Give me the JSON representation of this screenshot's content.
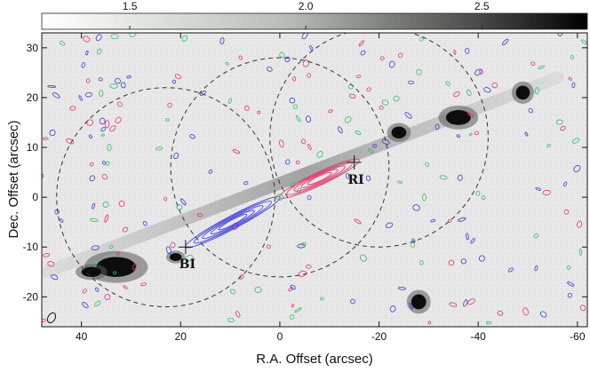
{
  "chart_data": {
    "type": "image",
    "xlabel": "R.A. Offset (arcsec)",
    "ylabel": "Dec. Offset (arcsec)",
    "xlim": [
      48,
      -62
    ],
    "ylim": [
      -26,
      33
    ],
    "x_ticks": [
      40,
      20,
      0,
      -20,
      -40,
      -60
    ],
    "y_ticks": [
      30,
      20,
      10,
      0,
      -10,
      -20
    ],
    "x_tick_labels": [
      "40",
      "20",
      "0",
      "-20",
      "-40",
      "-60"
    ],
    "y_tick_labels": [
      "30",
      "20",
      "10",
      "0",
      "-10",
      "-20"
    ],
    "colorbar": {
      "cmap": "gray-inverted",
      "range": [
        1.25,
        2.8
      ],
      "ticks": [
        1.5,
        2.0,
        2.5
      ],
      "tick_labels": [
        "1.5",
        "2.0",
        "2.5"
      ],
      "placement": "top"
    },
    "jet_axis": {
      "from": [
        47,
        -15
      ],
      "to": [
        -56,
        24
      ]
    },
    "fields_of_view": [
      {
        "center": [
          23,
          0
        ],
        "radius": 22
      },
      {
        "center": [
          0,
          6
        ],
        "radius": 22
      },
      {
        "center": [
          -20,
          12
        ],
        "radius": 22
      }
    ],
    "knots": [
      {
        "label": "BI",
        "x": 19,
        "y": -10
      },
      {
        "label": "RI",
        "x": -15,
        "y": 7
      }
    ],
    "blue_lobe": {
      "from": [
        0,
        0
      ],
      "to": [
        19,
        -10
      ]
    },
    "red_lobe": {
      "from": [
        0,
        0
      ],
      "to": [
        -16,
        7.5
      ]
    },
    "bright_knots": [
      {
        "x": 33,
        "y": -14,
        "rx": 4,
        "ry": 2
      },
      {
        "x": 38,
        "y": -15,
        "rx": 2,
        "ry": 1
      },
      {
        "x": 21,
        "y": -12,
        "rx": 1.2,
        "ry": 0.8
      },
      {
        "x": -24,
        "y": 13,
        "rx": 1.5,
        "ry": 1.2
      },
      {
        "x": -36,
        "y": 16,
        "rx": 2.5,
        "ry": 1.5
      },
      {
        "x": -49,
        "y": 21,
        "rx": 1.4,
        "ry": 1.4
      },
      {
        "x": -28,
        "y": -21,
        "rx": 1.5,
        "ry": 1.5
      }
    ],
    "legend": "none",
    "grid": false
  },
  "colors": {
    "blue_contour": "#3a3ad6",
    "red_contour": "#e0346f",
    "green_contour": "#2fbf62",
    "circle": "#333333"
  }
}
